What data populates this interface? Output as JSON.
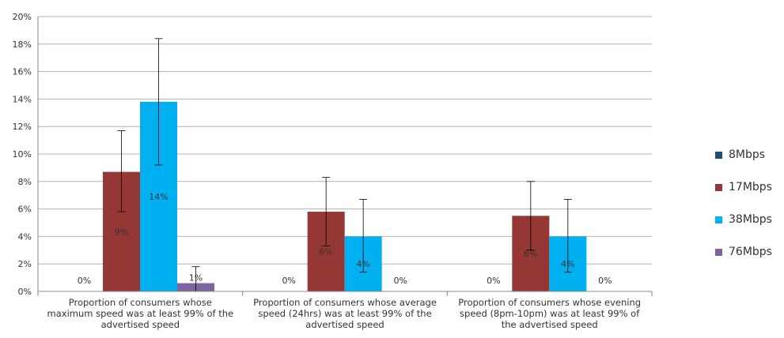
{
  "chart_data": {
    "type": "bar",
    "title": "",
    "xlabel": "",
    "ylabel": "",
    "ylim": [
      0,
      20
    ],
    "y_ticks": [
      "0%",
      "2%",
      "4%",
      "6%",
      "8%",
      "10%",
      "12%",
      "14%",
      "16%",
      "18%",
      "20%"
    ],
    "grid": true,
    "legend_position": "right",
    "categories": [
      "Proportion of consumers whose maximum speed was at least 99% of the advertised speed",
      "Proportion of consumers whose average speed (24hrs) was at least 99% of the advertised speed",
      "Proportion of consumers whose evening speed (8pm-10pm) was at least 99% of the advertised speed"
    ],
    "category_lines": [
      [
        "Proportion of consumers whose",
        "maximum speed was at least 99% of the",
        "advertised speed"
      ],
      [
        "Proportion of consumers whose average",
        "speed (24hrs) was at least 99% of the",
        "advertised speed"
      ],
      [
        "Proportion of consumers whose evening",
        "speed (8pm-10pm) was at least 99% of",
        "the advertised speed"
      ]
    ],
    "series": [
      {
        "name": "8Mbps",
        "color": "#1f4e79",
        "values": [
          0,
          0,
          0
        ],
        "labels": [
          "0%",
          "0%",
          "0%"
        ],
        "error_low": [
          null,
          null,
          null
        ],
        "error_high": [
          null,
          null,
          null
        ]
      },
      {
        "name": "17Mbps",
        "color": "#953735",
        "values": [
          8.7,
          5.8,
          5.5
        ],
        "labels": [
          "9%",
          "6%",
          "6%"
        ],
        "error_low": [
          5.8,
          3.3,
          3.0
        ],
        "error_high": [
          11.7,
          8.3,
          8.0
        ]
      },
      {
        "name": "38Mbps",
        "color": "#00b0f0",
        "values": [
          13.8,
          4.0,
          4.0
        ],
        "labels": [
          "14%",
          "4%",
          "4%"
        ],
        "error_low": [
          9.2,
          1.4,
          1.4
        ],
        "error_high": [
          18.4,
          6.7,
          6.7
        ]
      },
      {
        "name": "76Mbps",
        "color": "#8064a2",
        "values": [
          0.6,
          0,
          0
        ],
        "labels": [
          "1%",
          "0%",
          "0%"
        ],
        "error_low": [
          0,
          null,
          null
        ],
        "error_high": [
          1.8,
          null,
          null
        ]
      }
    ]
  }
}
